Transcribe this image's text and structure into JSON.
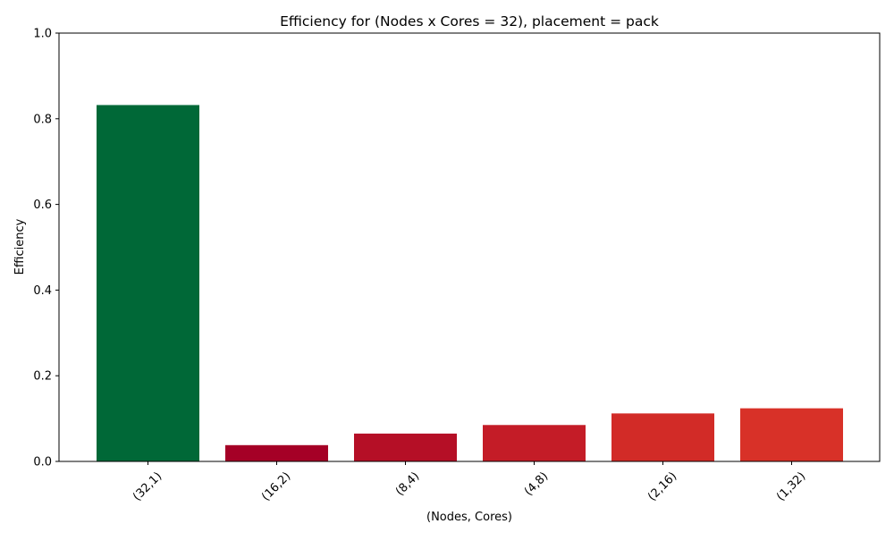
{
  "chart_data": {
    "type": "bar",
    "title": "Efficiency for (Nodes x Cores = 32), placement = pack",
    "xlabel": "(Nodes, Cores)",
    "ylabel": "Efficiency",
    "categories": [
      "(32,1)",
      "(16,2)",
      "(8,4)",
      "(4,8)",
      "(2,16)",
      "(1,32)"
    ],
    "values": [
      0.832,
      0.038,
      0.065,
      0.085,
      0.112,
      0.124
    ],
    "colors": [
      "#006837",
      "#a50026",
      "#b50f26",
      "#c41c27",
      "#d22b27",
      "#d83128"
    ],
    "ylim": [
      0,
      1.0
    ],
    "yticks": [
      "0.0",
      "0.2",
      "0.4",
      "0.6",
      "0.8",
      "1.0"
    ],
    "grid": false,
    "legend": "none"
  }
}
